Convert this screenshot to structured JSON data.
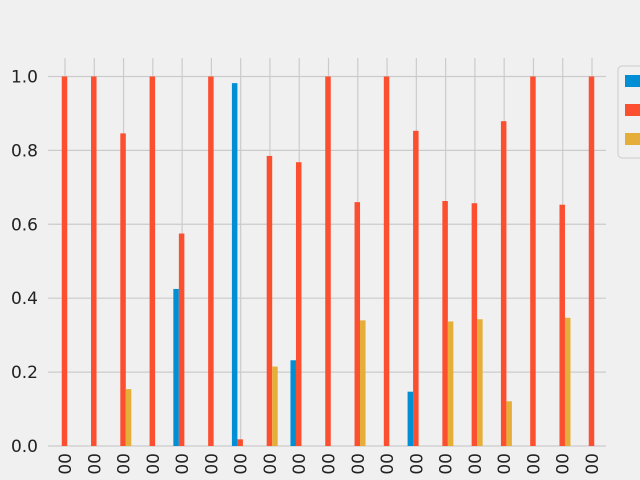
{
  "chart_data": {
    "type": "bar",
    "title": "",
    "xlabel": "",
    "ylabel": "",
    "ylim": [
      0,
      1.05
    ],
    "yticks": [
      "0.0",
      "0.2",
      "0.4",
      "0.6",
      "0.8",
      "1.0"
    ],
    "categories": [
      "00",
      "00",
      "00",
      "00",
      "00",
      "00",
      "00",
      "00",
      "00",
      "00",
      "00",
      "00",
      "00",
      "00",
      "00",
      "00",
      "00",
      "00",
      "00"
    ],
    "series": [
      {
        "color": "#008fd5",
        "values": [
          0,
          0,
          0,
          0,
          0.425,
          0,
          0.982,
          0,
          0.232,
          0,
          0,
          0,
          0.147,
          0,
          0,
          0,
          0,
          0,
          0
        ]
      },
      {
        "color": "#fc4f30",
        "values": [
          1.0,
          1.0,
          0.846,
          1.0,
          0.575,
          1.0,
          0.018,
          0.785,
          0.768,
          1.0,
          0.66,
          1.0,
          0.853,
          0.663,
          0.657,
          0.879,
          1.0,
          0.653,
          1.0
        ]
      },
      {
        "color": "#e5ae38",
        "values": [
          0,
          0,
          0.154,
          0,
          0,
          0,
          0,
          0.215,
          0,
          0,
          0.34,
          0,
          0,
          0.337,
          0.343,
          0.121,
          0,
          0.347,
          0
        ]
      }
    ],
    "grid": true,
    "legend_position": "top-right",
    "colors": {
      "background": "#f0f0f0",
      "grid": "#cbcbcb"
    }
  }
}
